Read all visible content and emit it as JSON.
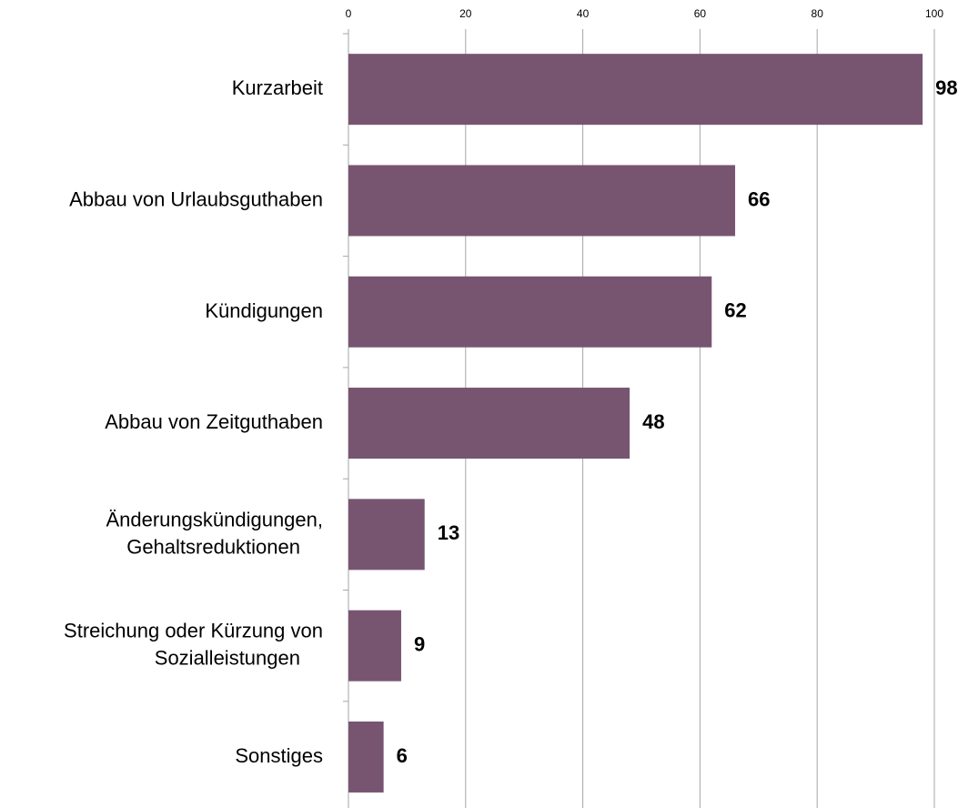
{
  "chart_data": {
    "type": "bar",
    "orientation": "horizontal",
    "categories": [
      "Kurzarbeit",
      "Abbau von Urlaubsguthaben",
      "Kündigungen",
      "Abbau von Zeitguthaben",
      "Änderungskündigungen,\nGehaltsreduktionen",
      "Streichung oder Kürzung von\nSozialleistungen",
      "Sonstiges"
    ],
    "values": [
      98,
      66,
      62,
      48,
      13,
      9,
      6
    ],
    "color": "#775570",
    "xlim": [
      0,
      100
    ],
    "xticks": [
      0,
      20,
      40,
      60,
      80,
      100
    ],
    "grid": true
  }
}
